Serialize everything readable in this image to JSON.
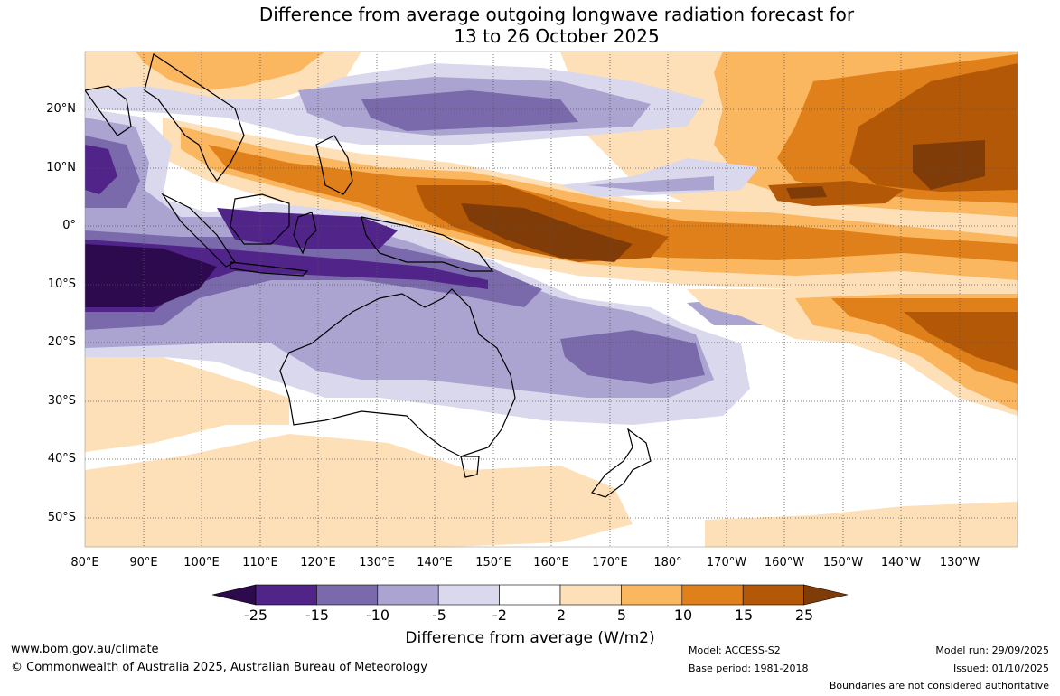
{
  "title_line1": "Difference from average outgoing longwave radiation forecast for",
  "title_line2": "13 to 26 October 2025",
  "lat_labels": [
    "20°N",
    "10°N",
    "0°",
    "10°S",
    "20°S",
    "30°S",
    "40°S",
    "50°S"
  ],
  "lon_labels": [
    "80°E",
    "90°E",
    "100°E",
    "110°E",
    "120°E",
    "130°E",
    "140°E",
    "150°E",
    "160°E",
    "170°E",
    "180°",
    "170°W",
    "160°W",
    "150°W",
    "140°W",
    "130°W"
  ],
  "colorbar": {
    "colors": [
      "#2d0a4e",
      "#51248a",
      "#7a6aab",
      "#aba4d1",
      "#d9d8ec",
      "#ffffff",
      "#fde0b8",
      "#fbb660",
      "#e0801a",
      "#b35806",
      "#7f3b08"
    ],
    "labels": [
      "-25",
      "-15",
      "-10",
      "-5",
      "-2",
      "2",
      "5",
      "10",
      "15",
      "25"
    ],
    "title": "Difference from average (W/m2)"
  },
  "footer": {
    "url": "www.bom.gov.au/climate",
    "copyright": "© Commonwealth of Australia 2025, Australian Bureau of Meteorology",
    "model": "Model: ACCESS-S2",
    "base_period": "Base period: 1981-2018",
    "model_run": "Model run: 29/09/2025",
    "issued": "Issued: 01/10/2025",
    "boundaries": "Boundaries are not considered authoritative"
  }
}
